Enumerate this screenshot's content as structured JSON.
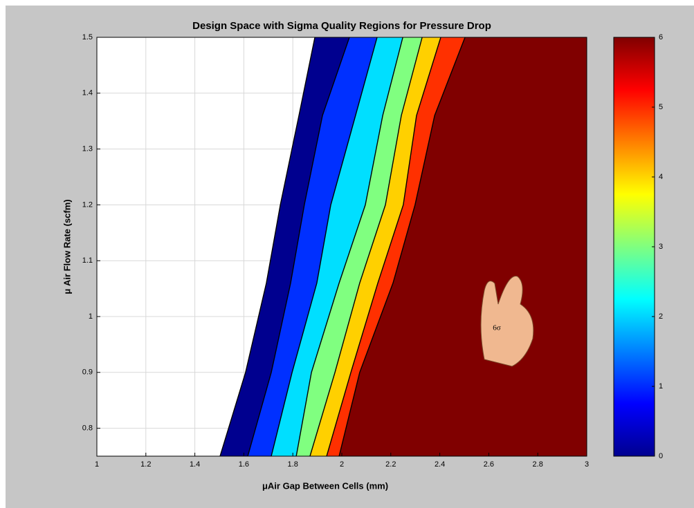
{
  "chart_data": {
    "type": "contourf",
    "title": "Design Space with Sigma Quality Regions for Pressure Drop",
    "xlabel": "μAir Gap Between Cells (mm)",
    "ylabel": "μ Air Flow Rate (scfm)",
    "annotation": "6σ",
    "xlim": [
      1,
      3
    ],
    "ylim": [
      0.75,
      1.5
    ],
    "xticks": [
      1,
      1.2,
      1.4,
      1.6,
      1.8,
      2,
      2.2,
      2.4,
      2.6,
      2.8,
      3
    ],
    "yticks": [
      0.8,
      0.9,
      1,
      1.1,
      1.2,
      1.3,
      1.4,
      1.5
    ],
    "grid": true,
    "clim": [
      0,
      6
    ],
    "cticks": [
      0,
      1,
      2,
      3,
      4,
      5,
      6
    ],
    "y": [
      0.75,
      0.9,
      1.06,
      1.2,
      1.36,
      1.5
    ],
    "contours": [
      {
        "level": 0,
        "x": [
          1.503,
          1.607,
          1.692,
          1.749,
          1.825,
          1.89
        ]
      },
      {
        "level": 1,
        "x": [
          1.616,
          1.712,
          1.791,
          1.847,
          1.921,
          2.031
        ]
      },
      {
        "level": 2,
        "x": [
          1.712,
          1.797,
          1.898,
          1.955,
          2.056,
          2.144
        ]
      },
      {
        "level": 3,
        "x": [
          1.814,
          1.876,
          1.989,
          2.096,
          2.167,
          2.249
        ]
      },
      {
        "level": 4,
        "x": [
          1.87,
          1.972,
          2.073,
          2.178,
          2.243,
          2.328
        ]
      },
      {
        "level": 5,
        "x": [
          1.938,
          2.037,
          2.147,
          2.251,
          2.305,
          2.404
        ]
      },
      {
        "level": 6,
        "x": [
          1.989,
          2.073,
          2.209,
          2.299,
          2.379,
          2.503
        ]
      }
    ],
    "colors": [
      "#ffffff",
      "#00008f",
      "#0030ff",
      "#00dfff",
      "#80ff80",
      "#ffd000",
      "#ff3000",
      "#800000"
    ]
  }
}
